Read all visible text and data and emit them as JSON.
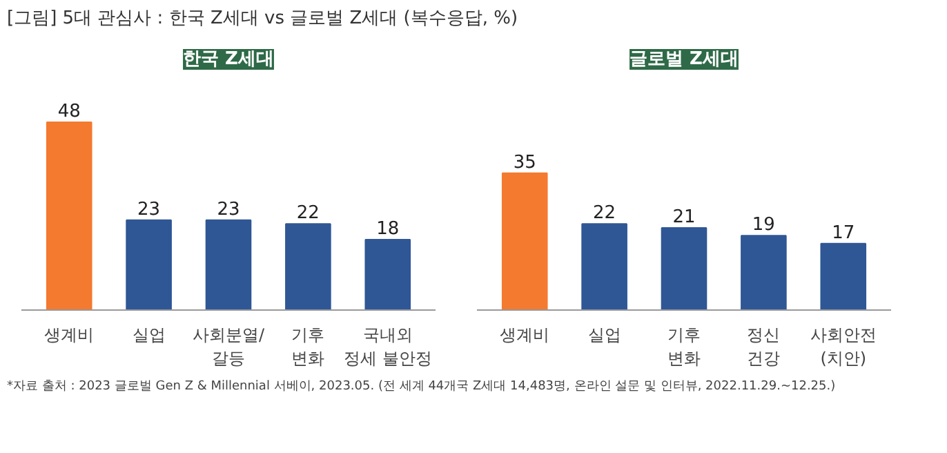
{
  "chart_data": [
    {
      "type": "bar",
      "title": "한국 Z세대",
      "categories": [
        "생계비",
        "실업",
        "사회분열/\n갈등",
        "기후\n변화",
        "국내외\n정세 불안정"
      ],
      "values": [
        48,
        23,
        23,
        22,
        18
      ],
      "colors": [
        "#f47a2f",
        "#2f5796",
        "#2f5796",
        "#2f5796",
        "#2f5796"
      ],
      "data_labels": true,
      "grid": false,
      "tick_labels": "x",
      "annotations": [
        "[그림] 5대 관심사 : 한국 Z세대 vs 글로벌 Z세대 (복수응답, %)",
        "*자료 출처 : 2023 글로벌 Gen Z & Millennial 서베이, 2023.05. (전 세계 44개국 Z세대 14,483명, 온라인 설문 및 인터뷰, 2022.11.29.~12.25.)"
      ]
    },
    {
      "type": "bar",
      "title": "글로벌 Z세대",
      "categories": [
        "생계비",
        "실업",
        "기후\n변화",
        "정신\n건강",
        "사회안전\n(치안)"
      ],
      "values": [
        35,
        22,
        21,
        19,
        17
      ],
      "colors": [
        "#f47a2f",
        "#2f5796",
        "#2f5796",
        "#2f5796",
        "#2f5796"
      ],
      "data_labels": true,
      "grid": false,
      "tick_labels": "x"
    }
  ]
}
